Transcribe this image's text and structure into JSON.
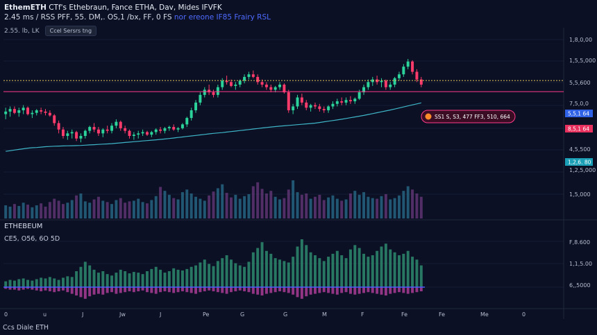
{
  "header": {
    "title_bold": "EthemETH",
    "title_rest": " CTf's Ethebraun, Fance ETHA, Dav, Mides IFVFK",
    "line2": "2.45 ms / RSS PFF, 55. DM,. OS,1 /bx, FF, 0 FS ",
    "line2_highlight": "nor ereone IF85 Frairy RSL"
  },
  "toolbar": {
    "symbol": "2.55. lb,  LK",
    "button": "Ccel Sersrs tng"
  },
  "price_tag": {
    "icon": "coin-icon",
    "text": "SS1 S, S3, 477 FF3, 510, 664"
  },
  "sub_panel": {
    "title": "ETHEBEUM",
    "values": "CE5, O56, 6O 5D"
  },
  "footer": {
    "label": "Ccs Diale ETH"
  },
  "colors": {
    "background": "#0b1024",
    "up": "#2bd39a",
    "down": "#ff3b6b",
    "ma_line": "#3fb6c8",
    "dotted_line": "#e6c65a",
    "hline": "#ff3b8a",
    "tag_blue": "#2f62e6",
    "tag_red": "#e8305e",
    "tag_teal": "#1b9fb6"
  },
  "chart_data": [
    {
      "type": "candlestick",
      "y_axis_labels": [
        "1,8,0,00",
        "1,5,5,000",
        "5,5,600",
        "7,5,0,0",
        "6,5,000",
        "4,5,500",
        "1,2,5,000",
        "1,5,000",
        "4,5,500"
      ],
      "x_axis_labels": [
        "0",
        "u",
        "J",
        "Jw",
        "J",
        "Pe",
        "G",
        "G",
        "M",
        "F",
        "Fe",
        "Fe",
        "Me",
        "0"
      ],
      "axis_tags": [
        {
          "label": "5,5,1 64",
          "color": "#2f62e6"
        },
        {
          "label": "8,5,1 64",
          "color": "#e8305e"
        },
        {
          "label": "1,2,6. 80",
          "color": "#1b9fb6"
        }
      ],
      "y_range": [
        0,
        100
      ],
      "ohlc": [
        [
          57,
          62,
          53,
          59
        ],
        [
          59,
          63,
          55,
          61
        ],
        [
          61,
          63,
          57,
          58
        ],
        [
          58,
          62,
          55,
          60
        ],
        [
          60,
          64,
          57,
          62
        ],
        [
          62,
          63,
          56,
          57
        ],
        [
          57,
          60,
          54,
          58
        ],
        [
          58,
          61,
          56,
          60
        ],
        [
          60,
          62,
          57,
          59
        ],
        [
          59,
          61,
          56,
          58
        ],
        [
          58,
          60,
          55,
          56
        ],
        [
          56,
          57,
          48,
          50
        ],
        [
          50,
          52,
          42,
          45
        ],
        [
          45,
          47,
          38,
          40
        ],
        [
          40,
          44,
          37,
          42
        ],
        [
          42,
          45,
          38,
          43
        ],
        [
          43,
          44,
          36,
          38
        ],
        [
          38,
          42,
          35,
          40
        ],
        [
          40,
          45,
          38,
          44
        ],
        [
          44,
          48,
          42,
          47
        ],
        [
          47,
          50,
          43,
          45
        ],
        [
          45,
          47,
          40,
          42
        ],
        [
          42,
          46,
          39,
          45
        ],
        [
          45,
          48,
          42,
          44
        ],
        [
          44,
          50,
          42,
          48
        ],
        [
          48,
          53,
          46,
          51
        ],
        [
          51,
          52,
          44,
          46
        ],
        [
          46,
          48,
          42,
          44
        ],
        [
          44,
          45,
          38,
          40
        ],
        [
          40,
          43,
          37,
          41
        ],
        [
          41,
          44,
          38,
          42
        ],
        [
          42,
          45,
          40,
          43
        ],
        [
          43,
          44,
          40,
          41
        ],
        [
          41,
          44,
          39,
          43
        ],
        [
          43,
          46,
          41,
          45
        ],
        [
          45,
          47,
          42,
          44
        ],
        [
          44,
          47,
          42,
          46
        ],
        [
          46,
          48,
          44,
          47
        ],
        [
          47,
          49,
          44,
          45
        ],
        [
          45,
          47,
          43,
          46
        ],
        [
          46,
          50,
          45,
          49
        ],
        [
          49,
          55,
          47,
          54
        ],
        [
          54,
          62,
          52,
          60
        ],
        [
          60,
          68,
          58,
          66
        ],
        [
          66,
          74,
          64,
          72
        ],
        [
          72,
          78,
          70,
          76
        ],
        [
          76,
          80,
          72,
          74
        ],
        [
          74,
          76,
          70,
          72
        ],
        [
          72,
          80,
          70,
          78
        ],
        [
          78,
          85,
          76,
          83
        ],
        [
          83,
          87,
          80,
          82
        ],
        [
          82,
          84,
          78,
          79
        ],
        [
          79,
          82,
          76,
          80
        ],
        [
          80,
          84,
          78,
          83
        ],
        [
          83,
          88,
          81,
          86
        ],
        [
          86,
          90,
          84,
          88
        ],
        [
          88,
          91,
          85,
          86
        ],
        [
          86,
          88,
          80,
          82
        ],
        [
          82,
          84,
          78,
          80
        ],
        [
          80,
          82,
          76,
          78
        ],
        [
          78,
          80,
          74,
          76
        ],
        [
          76,
          79,
          74,
          78
        ],
        [
          78,
          82,
          76,
          80
        ],
        [
          80,
          81,
          73,
          74
        ],
        [
          74,
          76,
          58,
          60
        ],
        [
          60,
          65,
          57,
          63
        ],
        [
          63,
          72,
          61,
          70
        ],
        [
          70,
          73,
          64,
          66
        ],
        [
          66,
          68,
          60,
          62
        ],
        [
          62,
          65,
          59,
          64
        ],
        [
          64,
          66,
          61,
          63
        ],
        [
          63,
          65,
          59,
          61
        ],
        [
          61,
          63,
          58,
          60
        ],
        [
          60,
          64,
          58,
          63
        ],
        [
          63,
          67,
          61,
          65
        ],
        [
          65,
          69,
          63,
          67
        ],
        [
          67,
          70,
          64,
          66
        ],
        [
          66,
          70,
          64,
          68
        ],
        [
          68,
          71,
          65,
          67
        ],
        [
          67,
          70,
          65,
          69
        ],
        [
          69,
          76,
          68,
          74
        ],
        [
          74,
          80,
          72,
          78
        ],
        [
          78,
          84,
          76,
          82
        ],
        [
          82,
          86,
          79,
          84
        ],
        [
          84,
          87,
          80,
          82
        ],
        [
          82,
          85,
          78,
          83
        ],
        [
          83,
          84,
          76,
          78
        ],
        [
          78,
          82,
          76,
          80
        ],
        [
          80,
          86,
          78,
          85
        ],
        [
          85,
          90,
          83,
          88
        ],
        [
          88,
          96,
          86,
          94
        ],
        [
          94,
          100,
          92,
          98
        ],
        [
          98,
          99,
          88,
          90
        ],
        [
          90,
          92,
          82,
          84
        ],
        [
          84,
          86,
          78,
          80
        ]
      ],
      "volume": [
        20,
        18,
        22,
        19,
        24,
        21,
        17,
        20,
        23,
        18,
        25,
        30,
        27,
        22,
        24,
        28,
        35,
        38,
        26,
        24,
        29,
        33,
        27,
        25,
        22,
        28,
        31,
        24,
        26,
        27,
        30,
        25,
        23,
        28,
        34,
        48,
        42,
        36,
        31,
        29,
        40,
        44,
        38,
        33,
        30,
        27,
        35,
        41,
        46,
        52,
        39,
        32,
        36,
        30,
        34,
        37,
        49,
        55,
        45,
        38,
        42,
        33,
        29,
        31,
        44,
        58,
        40,
        36,
        38,
        30,
        33,
        36,
        28,
        32,
        35,
        30,
        27,
        29,
        38,
        42,
        36,
        40,
        33,
        31,
        30,
        34,
        37,
        29,
        31,
        35,
        42,
        49,
        44,
        38,
        33
      ],
      "ma": [
        28,
        28.5,
        29,
        29.5,
        30,
        30.5,
        30.8,
        31,
        31.3,
        31.6,
        31.8,
        32,
        32.1,
        32.2,
        32.3,
        32.4,
        32.5,
        32.6,
        32.8,
        33,
        33.2,
        33.4,
        33.6,
        33.8,
        34,
        34.3,
        34.6,
        34.9,
        35.2,
        35.5,
        35.8,
        36.1,
        36.4,
        36.7,
        37,
        37.3,
        37.6,
        38,
        38.4,
        38.8,
        39.2,
        39.6,
        40,
        40.4,
        40.8,
        41.2,
        41.6,
        42,
        42.3,
        42.6,
        43,
        43.4,
        43.8,
        44.2,
        44.6,
        45,
        45.4,
        45.8,
        46.2,
        46.6,
        47,
        47.3,
        47.6,
        47.9,
        48.2,
        48.5,
        48.8,
        49.1,
        49.4,
        49.7,
        50,
        50.5,
        51,
        51.5,
        52,
        52.5,
        53,
        53.6,
        54.2,
        54.8,
        55.4,
        56,
        56.7,
        57.4,
        58.1,
        58.8,
        59.5,
        60.2,
        61,
        61.8,
        62.6,
        63.4,
        64.2,
        65,
        65.8
      ]
    },
    {
      "type": "bar",
      "title": "ETHEBEUM",
      "y_axis_labels": [
        "F,8.600",
        "1,1,5.00",
        "6,,5000"
      ],
      "series": [
        {
          "values": [
            8,
            10,
            9,
            11,
            12,
            10,
            9,
            11,
            13,
            12,
            14,
            12,
            10,
            13,
            15,
            14,
            22,
            28,
            35,
            30,
            24,
            20,
            22,
            18,
            16,
            20,
            24,
            22,
            19,
            21,
            20,
            18,
            22,
            25,
            28,
            24,
            20,
            22,
            26,
            24,
            23,
            25,
            28,
            30,
            34,
            38,
            32,
            29,
            36,
            40,
            44,
            38,
            33,
            30,
            28,
            35,
            48,
            54,
            62,
            50,
            46,
            40,
            38,
            36,
            34,
            42,
            56,
            66,
            58,
            48,
            44,
            40,
            36,
            42,
            46,
            50,
            44,
            40,
            52,
            58,
            54,
            46,
            42,
            44,
            50,
            56,
            60,
            52,
            48,
            44,
            46,
            50,
            42,
            38,
            30
          ]
        },
        {
          "values": [
            -2,
            -3,
            -3,
            -4,
            -3,
            -2,
            -3,
            -4,
            -5,
            -4,
            -5,
            -6,
            -5,
            -4,
            -6,
            -8,
            -10,
            -12,
            -14,
            -11,
            -9,
            -8,
            -9,
            -7,
            -6,
            -8,
            -7,
            -6,
            -5,
            -6,
            -5,
            -4,
            -6,
            -7,
            -8,
            -6,
            -5,
            -6,
            -7,
            -6,
            -5,
            -6,
            -7,
            -8,
            -6,
            -5,
            -4,
            -5,
            -6,
            -7,
            -8,
            -6,
            -5,
            -4,
            -5,
            -6,
            -8,
            -9,
            -10,
            -8,
            -7,
            -6,
            -5,
            -6,
            -7,
            -9,
            -12,
            -14,
            -11,
            -9,
            -8,
            -7,
            -6,
            -7,
            -8,
            -9,
            -7,
            -6,
            -8,
            -9,
            -8,
            -7,
            -6,
            -7,
            -8,
            -9,
            -10,
            -8,
            -7,
            -6,
            -7,
            -8,
            -7,
            -6,
            -5
          ]
        }
      ]
    }
  ]
}
